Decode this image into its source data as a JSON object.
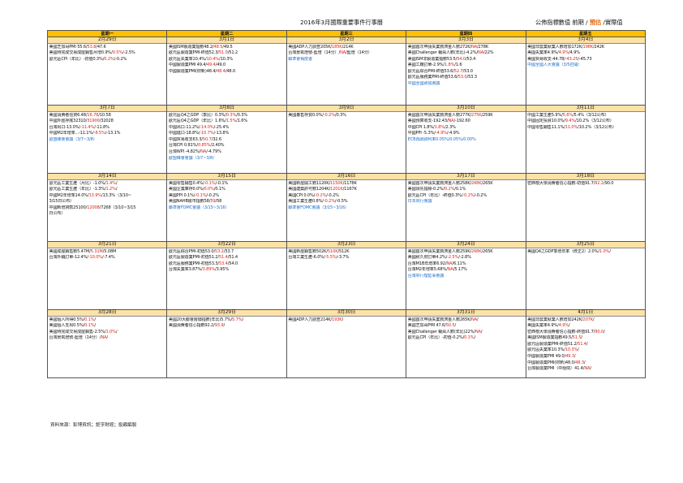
{
  "header": {
    "title": "2016年3月國際重要事件行事曆",
    "legend": [
      "公佈指標數值",
      "前期",
      "預估",
      "實際值"
    ]
  },
  "weekdays": [
    "星期一",
    "星期二",
    "星期三",
    "星期四",
    "星期五"
  ],
  "colors": {
    "header_bg": "#ffc000",
    "date_bg": "#fde2a6",
    "forecast": "#e0221a",
    "event": "#1e6fc9"
  },
  "weeks": [
    [
      {
        "date": "2月29日",
        "items": [
          {
            "t": "美國芝加哥PMI 55.6/",
            "f": "53.8",
            "p": "/47.6"
          },
          {
            "t": "美國待完成交易成屋銷售月增0.9%/",
            "f": "0.5%",
            "p": "/-2.5%"
          },
          {
            "t": "歐元區CPI（年比）-初值0.3%/",
            "f": "0.2%",
            "p": "/-0.2%"
          }
        ]
      },
      {
        "date": "3月1日",
        "items": [
          {
            "t": "美國ISM製造業指數48.2/",
            "f": "48.5",
            "p": "/49.5"
          },
          {
            "t": "歐元區製造業PMI-終值52.3/",
            "f": "51.0",
            "p": "/51.2"
          },
          {
            "t": "歐元區失業率10.4%/",
            "f": "10.4%",
            "p": "/10.3%"
          },
          {
            "t": "中國製造業PMI 49.4/",
            "f": "49.4",
            "p": "/49.0"
          },
          {
            "t": "中國製造業PMI(財新)48.4/",
            "f": "48.4",
            "p": "/48.0"
          }
        ]
      },
      {
        "date": "3月2日",
        "items": [
          {
            "t": "美國ADP人力調查205K/",
            "f": "185K",
            "p": "/214K"
          },
          {
            "t": "台灣景氣燈號-藍燈（14分）/",
            "f": "NA",
            "p": "/藍燈（14分）"
          },
          {
            "t": "聯準會褐皮書",
            "blue": true
          }
        ]
      },
      {
        "date": "3月3日",
        "items": [
          {
            "t": "美國首次申請失業救濟金人數272K/",
            "f": "NA",
            "p": "/278K"
          },
          {
            "t": "美國Challenger 裁員人數(年比)-4.2%/",
            "f": "NA",
            "p": "/22%"
          },
          {
            "t": "美國ISM非製造業指數53.5/",
            "f": "54.0",
            "p": "/53.4"
          },
          {
            "t": "美國工廠訂單-2.9%/",
            "f": "1.8%",
            "p": "/1.6"
          },
          {
            "t": "歐元區綜合PMI-終值53.6/",
            "f": "52.7",
            "p": "/53.0"
          },
          {
            "t": "歐元區服務業PMI-終值53.6/",
            "f": "53.0",
            "p": "/53.3"
          },
          {
            "t": "中國全國政協會議",
            "blue": true
          }
        ]
      },
      {
        "date": "3月4日",
        "items": [
          {
            "t": "美國非農業就業人數增加172K/",
            "f": "198K",
            "p": "/242K"
          },
          {
            "t": "美國失業率4.9%/",
            "f": "4.9%",
            "p": "/4.9%"
          },
          {
            "t": "美國貿易收支-44.78/",
            "f": "-43.25",
            "p": "/-45.73"
          },
          {
            "t": "中國全國人大會議（3/5召開）",
            "blue": true
          }
        ]
      }
    ],
    [
      {
        "date": "3月7日",
        "items": [
          {
            "t": "美國消費者信貸6.48/",
            "f": "16.78",
            "p": "/10.58"
          },
          {
            "t": "中國外匯存底32310/",
            "f": "31900",
            "p": "/32028"
          },
          {
            "t": "台灣出口-13.0%/",
            "f": "-11.4%",
            "p": "/-11.8%"
          },
          {
            "t": "中國M2年增率...-11.1%/",
            "f": "-8.5%",
            "p": "/-13.1%"
          },
          {
            "t": "歐盟峰會會議（3/7~3/8）",
            "blue": true
          }
        ]
      },
      {
        "date": "3月8日",
        "items": [
          {
            "t": "歐元區Q4之GDP（季比）0.3%/",
            "f": "0.3%",
            "p": "/0.3%"
          },
          {
            "t": "歐元區Q4之GDP（年比）1.6%/",
            "f": "1.5%",
            "p": "/1.6%"
          },
          {
            "t": "中國出口-11.2%/",
            "f": "-14.0%",
            "p": "/-25.4%"
          },
          {
            "t": "中國進口-18.8%/",
            "f": "-10.7%",
            "p": "/-13.8%"
          },
          {
            "t": "中國貿易收支63.3/",
            "f": "50.7",
            "p": "/32.6"
          },
          {
            "t": "台灣CPI 0.81%/",
            "f": "0.85%",
            "p": "/2.40%"
          },
          {
            "t": "台灣WPI -4.82%/",
            "f": "NA",
            "p": "/-4.79%"
          },
          {
            "t": "歐盟峰會會議（3/7~3/8）",
            "blue": true
          }
        ]
      },
      {
        "date": "3月9日",
        "items": [
          {
            "t": "美國躉售存貨0.0%/",
            "f": "-0.2%",
            "p": "/0.3%"
          }
        ]
      },
      {
        "date": "3月10日",
        "items": [
          {
            "t": "美國首次申請失業救濟金人數277K/",
            "f": "275K",
            "p": "/259K"
          },
          {
            "t": "美國預算收支-192.43/",
            "f": "NA",
            "p": "/-192.60"
          },
          {
            "t": "中國CPI 1.8%/",
            "f": "1.8%",
            "p": "/2.3%"
          },
          {
            "t": "中國PPI -5.3%/",
            "f": "-4.9%",
            "p": "/-4.9%"
          },
          {
            "t": "ECB再融資利率0.05%/",
            "f": "0.05%",
            "p": "/0.00%",
            "blue": true
          }
        ]
      },
      {
        "date": "3月11日",
        "items": [
          {
            "t": "中國工業生產5.9%/",
            "f": "5.6%",
            "p": "/5.4%（3/12公布）"
          },
          {
            "t": "中國固定投資10.0%/",
            "f": "9.4%",
            "p": "/10.2%（3/12公布）"
          },
          {
            "t": "中國零售銷售11.1%/",
            "f": "11.0%",
            "p": "/10.2%（3/12公布）"
          }
        ]
      }
    ],
    [
      {
        "date": "3月14日",
        "items": [
          {
            "t": "歐元區工業生產（月比）-1.0%/",
            "f": "1.4%",
            "p": "/"
          },
          {
            "t": "歐元區工業生產（年比）-1.3%/",
            "f": "1.2%",
            "p": "/"
          },
          {
            "t": "中國M2年增率14.0%/",
            "f": "13.9%",
            "p": "/13.3%（3/10~"
          },
          {
            "t": "3/15日公布）"
          },
          {
            "t": "中國新增貸款25100/",
            "f": "12008",
            "p": "/7268（3/10~3/15"
          },
          {
            "t": "日公布）"
          }
        ]
      },
      {
        "date": "3月15日",
        "items": [
          {
            "t": "美國零售銷售0.4%/",
            "f": "-0.1%",
            "p": "/-0.1%"
          },
          {
            "t": "美國企業庫存0.0%/",
            "f": "0.0%",
            "p": "/0.1%"
          },
          {
            "t": "美國PPI 0.1%/",
            "f": "-0.1%",
            "p": "/-0.2%"
          },
          {
            "t": "美國NAHB房市指數58/",
            "f": "59",
            "p": "/58"
          },
          {
            "t": "聯準會FOMC會議（3/15~3/16）",
            "blue": true
          }
        ]
      },
      {
        "date": "3月16日",
        "items": [
          {
            "t": "美國新屋開工數1120K/",
            "f": "1150K",
            "p": "/1178K"
          },
          {
            "t": "美國建築許可數1204K/",
            "f": "1201K",
            "p": "/1167K"
          },
          {
            "t": "美國CPI 0.0%/",
            "f": "-0.2%",
            "p": "/-0.2%"
          },
          {
            "t": "美國工業生產0.8%/",
            "f": "-0.2%",
            "p": "/-0.5%"
          },
          {
            "t": "聯準會FOMC會議（3/15~3/16）",
            "blue": true
          }
        ]
      },
      {
        "date": "3月17日",
        "items": [
          {
            "t": "美國首次申請失業救濟金人數258K/",
            "f": "268K",
            "p": "/265K"
          },
          {
            "t": "美國領先指標-0.2%/",
            "f": "0.2%",
            "p": "/0.1%"
          },
          {
            "t": "歐元區CPI（年比）-終值0.3%/",
            "f": "-0.2%",
            "p": "/-0.2%"
          },
          {
            "t": "日本央行會議",
            "blue": true
          }
        ]
      },
      {
        "date": "3月18日",
        "items": [
          {
            "t": "密西根大學消費者信心指數-初值91.7/",
            "f": "92.2",
            "p": "/90.0"
          }
        ]
      }
    ],
    [
      {
        "date": "3月21日",
        "items": [
          {
            "t": "美國成屋銷售數5.47M/",
            "f": "5.31M",
            "p": "/5.08M"
          },
          {
            "t": "台灣外銷訂單-12.4%/",
            "f": "-10.0%",
            "p": "/-7.4%"
          }
        ]
      },
      {
        "date": "3月22日",
        "items": [
          {
            "t": "歐元區綜合PMI-初值53.0/",
            "f": "53.2",
            "p": "/53.7"
          },
          {
            "t": "歐元區製造業PMI-初值51.2/",
            "f": "51.4",
            "p": "/51.4"
          },
          {
            "t": "歐元區服務業PMI-初值53.3/",
            "f": "53.4",
            "p": "/54.0"
          },
          {
            "t": "台灣失業率3.87%/",
            "f": "3.89%",
            "p": "/3.95%"
          }
        ]
      },
      {
        "date": "3月23日",
        "items": [
          {
            "t": "美國新屋銷售數502K/",
            "f": "510K",
            "p": "/512K"
          },
          {
            "t": "台灣工業生產-6.0%/",
            "f": "-5.5%",
            "p": "/-3.7%"
          }
        ]
      },
      {
        "date": "3月24日",
        "items": [
          {
            "t": "美國首次申請失業救濟金人數259K/",
            "f": "268K",
            "p": "/265K"
          },
          {
            "t": "美國耐久財訂單4.2%/",
            "f": "-2.5%",
            "p": "/-2.8%"
          },
          {
            "t": "台灣M1B年增率6.92/",
            "f": "NA",
            "p": "/6.11%"
          },
          {
            "t": "台灣M2年增率5.68%/",
            "f": "NA",
            "p": "/5.17%"
          },
          {
            "t": "台灣央行理監事會議",
            "blue": true
          }
        ]
      },
      {
        "date": "3月25日",
        "items": [
          {
            "t": "美國Q4之GDP季增年率（修正2）2.0%/",
            "f": "1.0%",
            "p": "/"
          }
        ]
      }
    ],
    [
      {
        "date": "3月28日",
        "items": [
          {
            "t": "美國個人所得0.5%/",
            "f": "0.1%",
            "p": "/"
          },
          {
            "t": "美國個人支出0.5%/",
            "f": "0.1%",
            "p": "/"
          },
          {
            "t": "美國待完成交易成屋銷售-2.5%/",
            "f": "1.0%",
            "p": "/"
          },
          {
            "t": "台灣景氣燈號-藍燈（14分）/",
            "f": "NA",
            "p": "/"
          }
        ]
      },
      {
        "date": "3月29日",
        "items": [
          {
            "t": "美國20大都會房價指數(年比)5.7%/",
            "f": "5.7%",
            "p": "/"
          },
          {
            "t": "美國消費者信心指數92.2/",
            "f": "93.9",
            "p": "/"
          }
        ]
      },
      {
        "date": "3月30日",
        "items": [
          {
            "t": "美國ADP人力調查214K/",
            "f": "193K",
            "p": "/"
          }
        ]
      },
      {
        "date": "3月31日",
        "items": [
          {
            "t": "美國首次申請失業救濟金人數265K/",
            "f": "NA",
            "p": "/"
          },
          {
            "t": "美國芝加哥PMI 47.6/",
            "f": "50.5",
            "p": "/"
          },
          {
            "t": "美國Challenger 裁員人數(年比)22%/",
            "f": "NA",
            "p": "/"
          },
          {
            "t": "歐元區CPI（年比）-初值-0.2%/",
            "f": "0.1%",
            "p": "/"
          }
        ]
      },
      {
        "date": "4月1日",
        "items": [
          {
            "t": "美國非農業就業人數增加242K/",
            "f": "207K",
            "p": "/"
          },
          {
            "t": "美國失業率4.9%/",
            "f": "4.9%",
            "p": "/"
          },
          {
            "t": "密西根大學消費者信心指數-終值91.7/",
            "f": "90.0",
            "p": "/"
          },
          {
            "t": "美國ISM製造業指數49.5/",
            "f": "51.5",
            "p": "/"
          },
          {
            "t": "歐元區製造業PMI-終值51.2/",
            "f": "51.4",
            "p": "/"
          },
          {
            "t": "歐元區失業率10.3%/",
            "f": "10.3%",
            "p": "/"
          },
          {
            "t": "中國製造業PMI 49.0/",
            "f": "49.3",
            "p": "/"
          },
          {
            "t": "中國製造業PMI(財新)48.0/",
            "f": "48.3",
            "p": "/"
          },
          {
            "t": "台灣製造業PMI（中經院）41.4/",
            "f": "NA",
            "p": "/"
          }
        ]
      }
    ]
  ],
  "footer": {
    "source": "資料來源：彭博資訊；鉅亨財經；投顧編製"
  }
}
